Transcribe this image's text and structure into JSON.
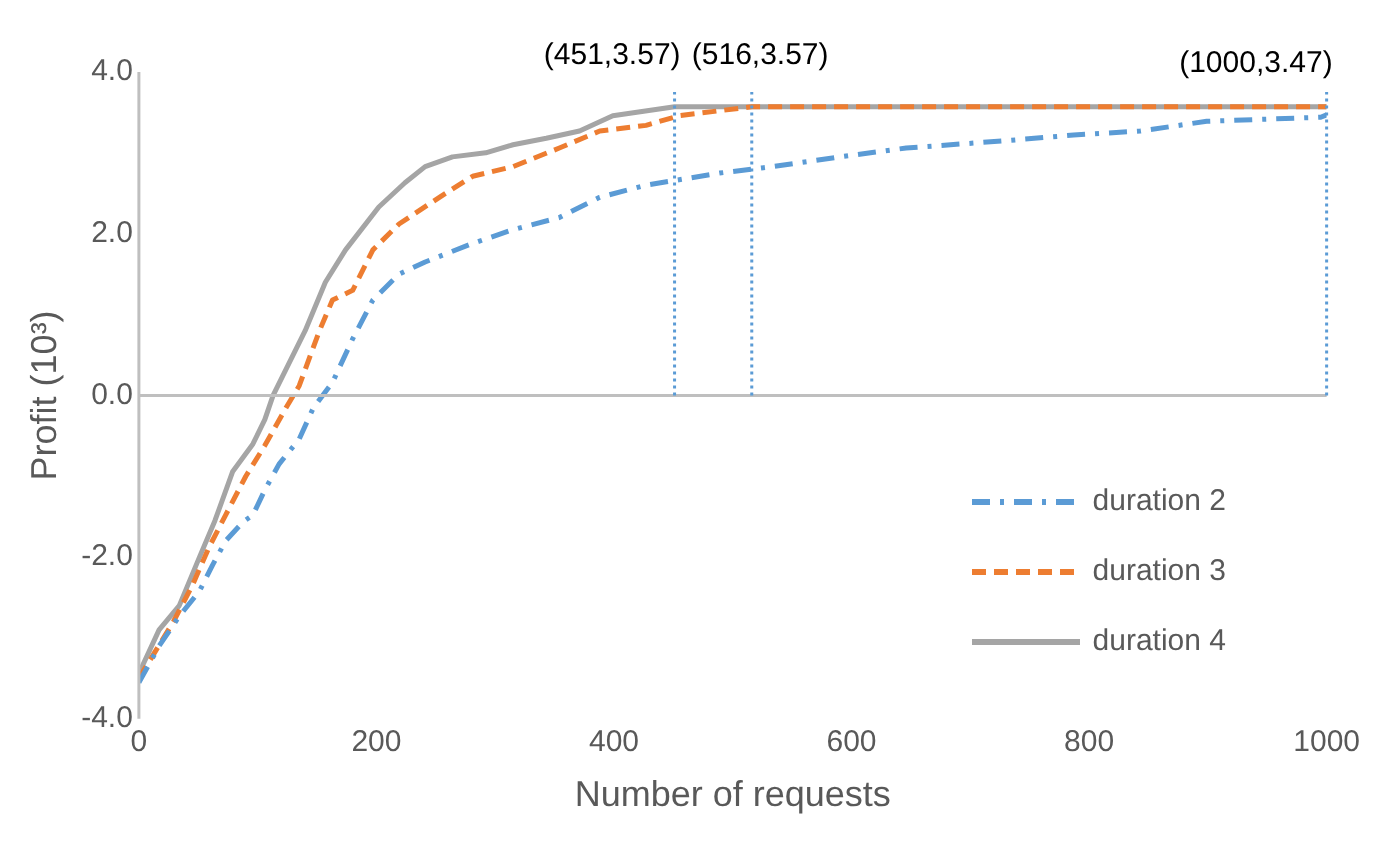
{
  "chart_data": {
    "type": "line",
    "xlabel": "Number of requests",
    "ylabel": "Profit (10³)",
    "xlim": [
      0,
      1000
    ],
    "xticks": [
      0,
      200,
      400,
      600,
      800,
      1000
    ],
    "ylim": [
      -4,
      4
    ],
    "yticks": [
      {
        "value": -4,
        "label": "-4.0"
      },
      {
        "value": -2,
        "label": "-2.0"
      },
      {
        "value": 0,
        "label": "0.0"
      },
      {
        "value": 2,
        "label": "2.0"
      },
      {
        "value": 4,
        "label": "4.0"
      }
    ],
    "grid": false,
    "legend": "right",
    "marker": "none",
    "series": [
      {
        "name": "duration 2",
        "color": "#5b9bd5",
        "line_style": "dashdot",
        "x": [
          0,
          17,
          34,
          51,
          62,
          73,
          88,
          96,
          106,
          118,
          135,
          147,
          163,
          180,
          197,
          219,
          241,
          281,
          315,
          354,
          388,
          427,
          489,
          534,
          590,
          646,
          730,
          787,
          843,
          899,
          995,
          1000
        ],
        "values": [
          -3.55,
          -3.1,
          -2.73,
          -2.42,
          -2.1,
          -1.8,
          -1.56,
          -1.48,
          -1.17,
          -0.85,
          -0.54,
          -0.15,
          0.16,
          0.7,
          1.18,
          1.5,
          1.65,
          1.88,
          2.05,
          2.2,
          2.45,
          2.6,
          2.75,
          2.83,
          2.95,
          3.06,
          3.15,
          3.22,
          3.27,
          3.39,
          3.44,
          3.47
        ]
      },
      {
        "name": "duration 3",
        "color": "#ed7d31",
        "line_style": "dashed",
        "x": [
          0,
          29,
          45,
          59,
          73,
          90,
          106,
          124,
          135,
          152,
          163,
          180,
          197,
          219,
          253,
          281,
          315,
          354,
          388,
          427,
          455,
          516,
          1000
        ],
        "values": [
          -3.5,
          -2.8,
          -2.35,
          -1.88,
          -1.48,
          -1.0,
          -0.62,
          -0.15,
          0.12,
          0.8,
          1.18,
          1.3,
          1.8,
          2.12,
          2.45,
          2.71,
          2.83,
          3.06,
          3.27,
          3.34,
          3.46,
          3.57,
          3.57
        ]
      },
      {
        "name": "duration 4",
        "color": "#a5a5a5",
        "line_style": "solid",
        "x": [
          0,
          17,
          34,
          51,
          64,
          79,
          96,
          106,
          113,
          140,
          157,
          174,
          202,
          224,
          241,
          264,
          292,
          315,
          343,
          371,
          399,
          451,
          1000
        ],
        "values": [
          -3.44,
          -2.9,
          -2.6,
          -2.0,
          -1.55,
          -0.94,
          -0.6,
          -0.3,
          0,
          0.8,
          1.4,
          1.8,
          2.33,
          2.63,
          2.83,
          2.95,
          3.0,
          3.1,
          3.18,
          3.27,
          3.46,
          3.57,
          3.57
        ]
      }
    ],
    "ref_lines": [
      {
        "axis": "y",
        "value": 0,
        "color": "#bfbfbf",
        "line_style": "solid"
      },
      {
        "axis": "x",
        "value": 451,
        "color": "#5b9bd5",
        "line_style": "dotted"
      },
      {
        "axis": "x",
        "value": 516,
        "color": "#5b9bd5",
        "line_style": "dotted"
      },
      {
        "axis": "x",
        "value": 1000,
        "color": "#5b9bd5",
        "line_style": "dotted"
      }
    ],
    "annotations": [
      {
        "text": "(451,3.57)",
        "x": 451,
        "y": 3.57
      },
      {
        "text": "(516,3.57)",
        "x": 516,
        "y": 3.57
      },
      {
        "text": "(1000,3.47)",
        "x": 1000,
        "y": 3.47
      }
    ]
  }
}
